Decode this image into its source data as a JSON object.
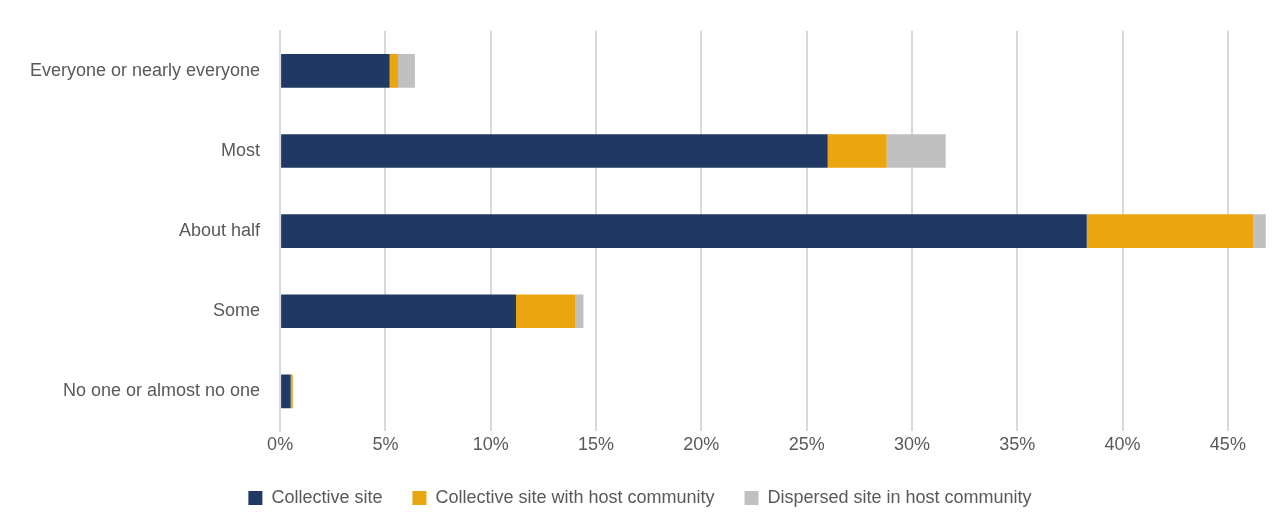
{
  "chart_data": {
    "type": "bar",
    "orientation": "horizontal",
    "stacked": true,
    "categories": [
      "Everyone or nearly everyone",
      "Most",
      "About half",
      "Some",
      "No one or almost no one"
    ],
    "series": [
      {
        "name": "Collective site",
        "color": "#1f3864",
        "values": [
          5.2,
          26.0,
          38.3,
          11.2,
          0.5
        ]
      },
      {
        "name": "Collective site with host community",
        "color": "#eba50f",
        "values": [
          0.4,
          2.8,
          7.9,
          2.8,
          0.1
        ]
      },
      {
        "name": "Dispersed site in host community",
        "color": "#c0c0c0",
        "values": [
          0.8,
          2.8,
          0.6,
          0.4,
          null
        ]
      }
    ],
    "xlim": [
      0,
      47
    ],
    "xticks": [
      {
        "value": 0,
        "label": "0%"
      },
      {
        "value": 5,
        "label": "5%"
      },
      {
        "value": 10,
        "label": "10%"
      },
      {
        "value": 15,
        "label": "15%"
      },
      {
        "value": 20,
        "label": "20%"
      },
      {
        "value": 25,
        "label": "25%"
      },
      {
        "value": 30,
        "label": "30%"
      },
      {
        "value": 35,
        "label": "35%"
      },
      {
        "value": 40,
        "label": "40%"
      },
      {
        "value": 45,
        "label": "45%"
      }
    ],
    "grid": "x",
    "legend": "bottom"
  }
}
